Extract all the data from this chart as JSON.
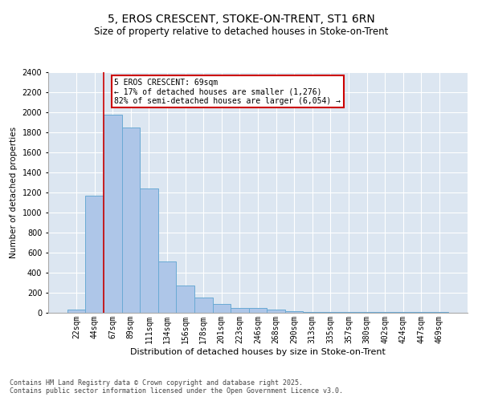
{
  "title": "5, EROS CRESCENT, STOKE-ON-TRENT, ST1 6RN",
  "subtitle": "Size of property relative to detached houses in Stoke-on-Trent",
  "xlabel": "Distribution of detached houses by size in Stoke-on-Trent",
  "ylabel": "Number of detached properties",
  "categories": [
    "22sqm",
    "44sqm",
    "67sqm",
    "89sqm",
    "111sqm",
    "134sqm",
    "156sqm",
    "178sqm",
    "201sqm",
    "223sqm",
    "246sqm",
    "268sqm",
    "290sqm",
    "313sqm",
    "335sqm",
    "357sqm",
    "380sqm",
    "402sqm",
    "424sqm",
    "447sqm",
    "469sqm"
  ],
  "values": [
    30,
    1170,
    1980,
    1850,
    1240,
    515,
    275,
    155,
    90,
    50,
    45,
    30,
    20,
    5,
    5,
    5,
    5,
    5,
    5,
    5,
    5
  ],
  "bar_color": "#aec6e8",
  "bar_edge_color": "#6aaad4",
  "background_color": "#dce6f1",
  "annotation_text": "5 EROS CRESCENT: 69sqm\n← 17% of detached houses are smaller (1,276)\n82% of semi-detached houses are larger (6,054) →",
  "annotation_box_color": "#ffffff",
  "annotation_box_edge": "#cc0000",
  "redline_x": 1.5,
  "ylim": [
    0,
    2400
  ],
  "yticks": [
    0,
    200,
    400,
    600,
    800,
    1000,
    1200,
    1400,
    1600,
    1800,
    2000,
    2200,
    2400
  ],
  "footer_text": "Contains HM Land Registry data © Crown copyright and database right 2025.\nContains public sector information licensed under the Open Government Licence v3.0.",
  "title_fontsize": 10,
  "subtitle_fontsize": 8.5,
  "xlabel_fontsize": 8,
  "ylabel_fontsize": 7.5,
  "tick_fontsize": 7,
  "footer_fontsize": 6,
  "annotation_fontsize": 7
}
